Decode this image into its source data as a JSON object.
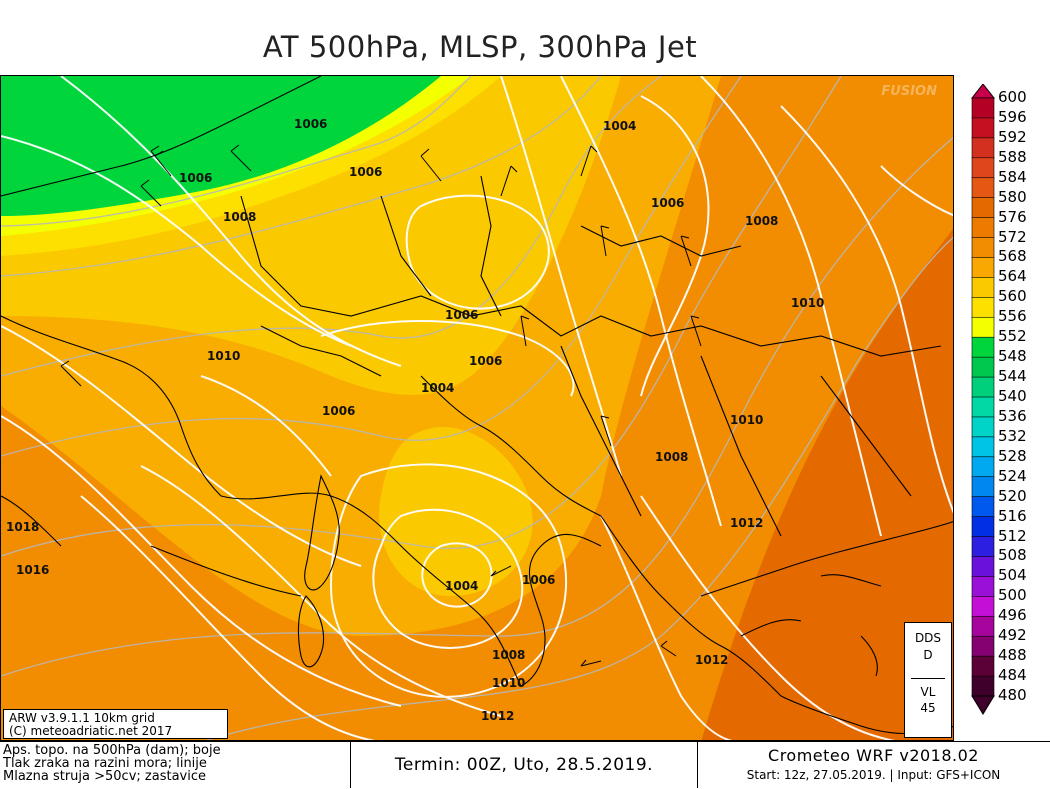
{
  "title": "AT 500hPa, MLSP, 300hPa Jet",
  "watermark": "FUSION",
  "colors": {
    "orange_dark": "#e46a00",
    "orange": "#f28c00",
    "orange_light": "#f9ad00",
    "gold": "#fbc900",
    "yellow": "#fde000",
    "lemon": "#f4ff00",
    "green": "#00d63b",
    "contour_white": "#ffffff",
    "border_black": "#000000"
  },
  "map": {
    "pressure_labels": [
      "1006",
      "1006",
      "1008",
      "1006",
      "1004",
      "1006",
      "1008",
      "1010",
      "1006",
      "1010",
      "1006",
      "1004",
      "1006",
      "1010",
      "1008",
      "1012",
      "1018",
      "1016",
      "1004",
      "1006",
      "1008",
      "1010",
      "1012",
      "1012"
    ],
    "model_info_line1": "ARW v3.9.1.1 10km grid",
    "model_info_line2": "(C) meteoadriatic.net 2017",
    "dds": {
      "line1": "DDS",
      "line2": "D",
      "line3": "VL",
      "line4": "45"
    }
  },
  "legend": {
    "values": [
      "600",
      "596",
      "592",
      "588",
      "584",
      "580",
      "576",
      "572",
      "568",
      "564",
      "560",
      "556",
      "552",
      "548",
      "544",
      "540",
      "536",
      "532",
      "528",
      "524",
      "520",
      "516",
      "512",
      "508",
      "504",
      "500",
      "496",
      "492",
      "488",
      "484",
      "480"
    ],
    "colors": [
      "#c8004b",
      "#b40024",
      "#c5101f",
      "#d3301f",
      "#e0461c",
      "#e45814",
      "#e46a00",
      "#ec7b00",
      "#f28c00",
      "#f8a800",
      "#fbc900",
      "#fde000",
      "#f4ff00",
      "#00d63b",
      "#00c84f",
      "#00d07b",
      "#00d9a5",
      "#00d3c8",
      "#00c4e6",
      "#00a9f0",
      "#0087f0",
      "#0059ee",
      "#002fe4",
      "#2d1fe2",
      "#6a12dc",
      "#9b10d8",
      "#c410d6",
      "#a6049c",
      "#850070",
      "#5c0038",
      "#3f002c"
    ]
  },
  "footer": {
    "left_line1": "Aps. topo. na 500hPa (dam); boje",
    "left_line2": "Tlak zraka na razini mora; linije",
    "left_line3": "Mlazna struja >50cv; zastavice",
    "termin": "Termin: 00Z, Uto, 28.5.2019.",
    "brand": "Crometeo WRF v2018.02",
    "start": "Start: 12z, 27.05.2019. | Input: GFS+ICON"
  }
}
